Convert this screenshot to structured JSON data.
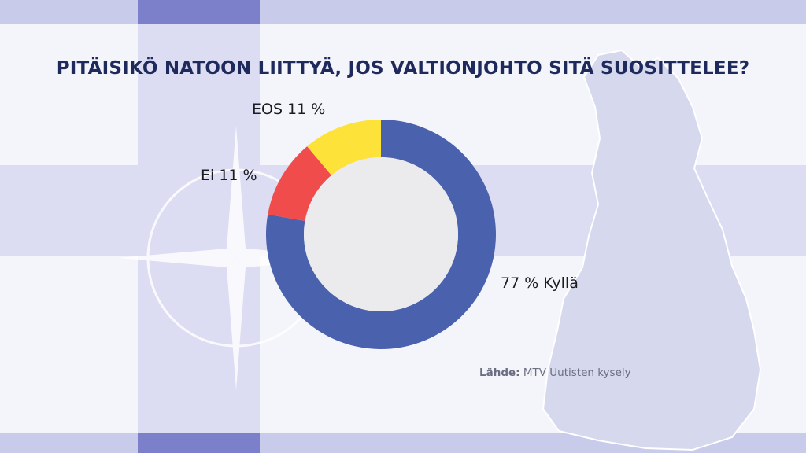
{
  "title": "PITÄISIKÖ NATOON LIITTYÄ, JOS VALTIONJOHTO SITÄ SUOSITTELEE?",
  "source": {
    "label": "Lähde:",
    "text": "MTV Uutisten kysely"
  },
  "colors": {
    "yes": "#4a62ad",
    "no": "#f04c4b",
    "dont_know": "#fde23a",
    "center": "#ebebee",
    "title": "#1f2a5c"
  },
  "chart_data": {
    "type": "pie",
    "style": "donut",
    "title": "PITÄISIKÖ NATOON LIITTYÄ, JOS VALTIONJOHTO SITÄ SUOSITTELEE?",
    "slices": [
      {
        "name": "Kyllä",
        "value": 77,
        "label": "77 % Kyllä",
        "color": "#4a62ad"
      },
      {
        "name": "Ei",
        "value": 11,
        "label": "Ei 11 %",
        "color": "#f04c4b"
      },
      {
        "name": "EOS",
        "value": 11,
        "label": "EOS 11 %",
        "color": "#fde23a"
      }
    ]
  }
}
